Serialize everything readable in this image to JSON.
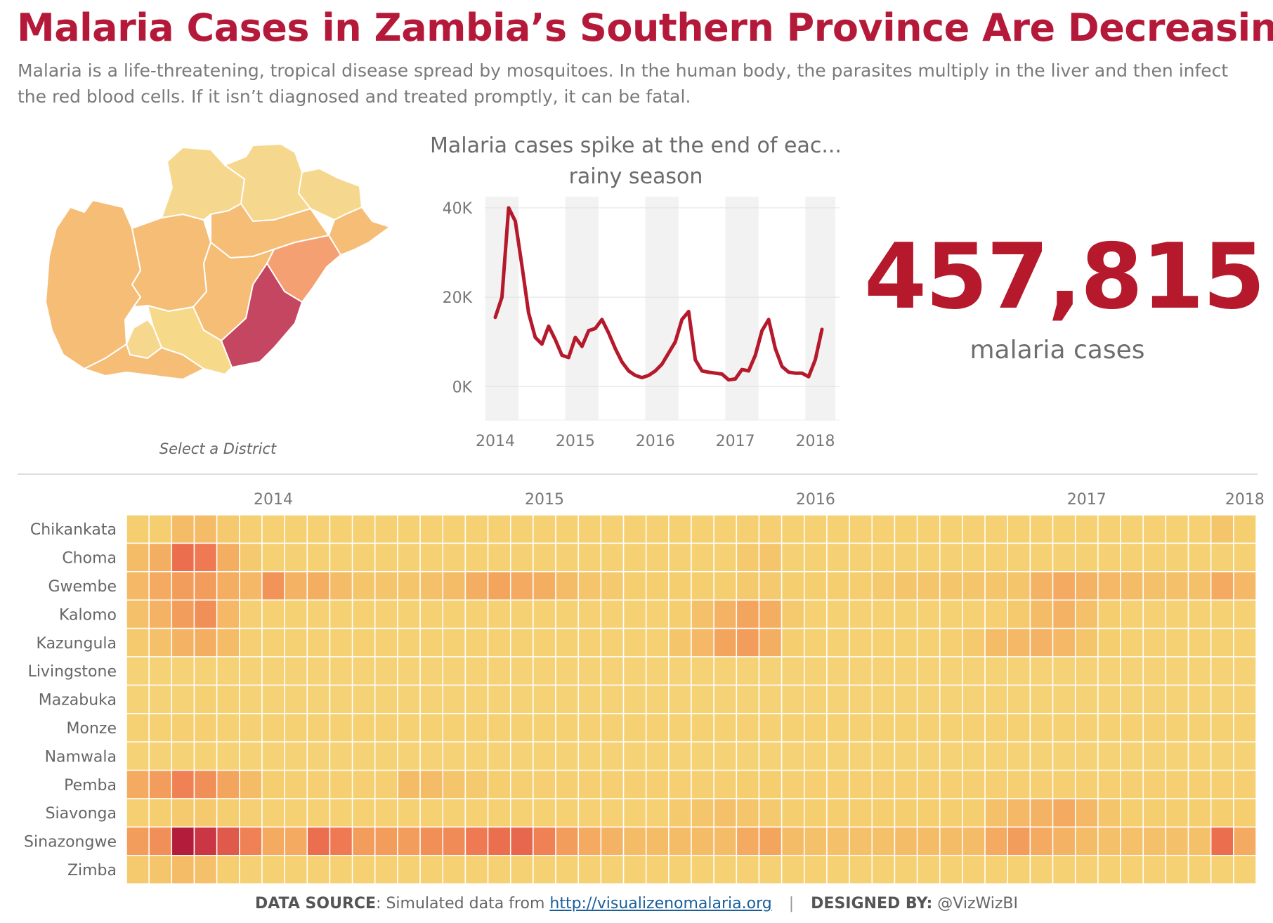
{
  "header": {
    "title": "Malaria Cases in Zambia’s Southern Province Are Decreasing",
    "subtitle": "Malaria is a life-threatening, tropical disease spread by mosquitoes. In the human body, the parasites multiply in the liver and then infect the red blood cells. If it isn’t diagnosed and treated promptly, it can be fatal."
  },
  "map": {
    "caption": "Select a District",
    "colors": [
      "#f6d78e",
      "#f5bd75",
      "#f4a072",
      "#c44660",
      "#f7d98a"
    ]
  },
  "kpi": {
    "value": "457,815",
    "label": "malaria cases"
  },
  "footer": {
    "source_label": "DATA SOURCE",
    "source_text": ": Simulated data from ",
    "source_link": "http://visualizenomalaria.org",
    "separator": "|",
    "designed_label": "DESIGNED BY:",
    "designed_text": " @VizWizBI"
  },
  "chart_data": [
    {
      "type": "line",
      "title": "Malaria cases spike at the end of eac... rainy season",
      "y_ticks": [
        "40K",
        "20K",
        "0K"
      ],
      "y_tick_values": [
        40000,
        20000,
        0
      ],
      "x_ticks": [
        "2014",
        "2015",
        "2016",
        "2017",
        "2018"
      ],
      "ylim": [
        -7500,
        42500
      ],
      "grid": true,
      "color": "#b5192b",
      "series": [
        {
          "name": "",
          "x": [
            "2014-01",
            "2014-02",
            "2014-03",
            "2014-04",
            "2014-05",
            "2014-06",
            "2014-07",
            "2014-08",
            "2014-09",
            "2014-10",
            "2014-11",
            "2014-12",
            "2015-01",
            "2015-02",
            "2015-03",
            "2015-04",
            "2015-05",
            "2015-06",
            "2015-07",
            "2015-08",
            "2015-09",
            "2015-10",
            "2015-11",
            "2015-12",
            "2016-01",
            "2016-02",
            "2016-03",
            "2016-04",
            "2016-05",
            "2016-06",
            "2016-07",
            "2016-08",
            "2016-09",
            "2016-10",
            "2016-11",
            "2016-12",
            "2017-01",
            "2017-02",
            "2017-03",
            "2017-04",
            "2017-05",
            "2017-06",
            "2017-07",
            "2017-08",
            "2017-09",
            "2017-10",
            "2017-11",
            "2017-12",
            "2018-01",
            "2018-02"
          ],
          "values": [
            15500,
            20000,
            40000,
            37000,
            27000,
            16500,
            11000,
            9500,
            13500,
            10500,
            7000,
            6500,
            11000,
            9000,
            12500,
            13000,
            15000,
            12000,
            8500,
            5500,
            3500,
            2500,
            2000,
            2500,
            3500,
            5000,
            7500,
            10000,
            15000,
            16800,
            6000,
            3500,
            3200,
            3000,
            2800,
            1500,
            1700,
            3800,
            3500,
            7000,
            12500,
            15000,
            8500,
            4500,
            3200,
            3000,
            3000,
            2200,
            6000,
            12800
          ]
        }
      ]
    },
    {
      "type": "heatmap",
      "rows": [
        "Chikankata",
        "Choma",
        "Gwembe",
        "Kalomo",
        "Kazungula",
        "Livingstone",
        "Mazabuka",
        "Monze",
        "Namwala",
        "Pemba",
        "Siavonga",
        "Sinazongwe",
        "Zimba"
      ],
      "year_labels": [
        "2014",
        "2015",
        "2016",
        "2017",
        "2018"
      ],
      "columns": 50,
      "scale": "0 = lowest cases (light yellow), 1 = highest (dark red)",
      "values": [
        [
          0.2,
          0.2,
          0.3,
          0.3,
          0.22,
          0.18,
          0.15,
          0.15,
          0.15,
          0.15,
          0.15,
          0.15,
          0.15,
          0.15,
          0.15,
          0.15,
          0.15,
          0.15,
          0.15,
          0.15,
          0.15,
          0.15,
          0.15,
          0.15,
          0.15,
          0.15,
          0.15,
          0.18,
          0.18,
          0.15,
          0.15,
          0.15,
          0.15,
          0.15,
          0.15,
          0.15,
          0.15,
          0.15,
          0.15,
          0.15,
          0.15,
          0.15,
          0.15,
          0.15,
          0.15,
          0.15,
          0.15,
          0.15,
          0.25,
          0.2
        ],
        [
          0.3,
          0.38,
          0.62,
          0.58,
          0.38,
          0.22,
          0.15,
          0.15,
          0.15,
          0.15,
          0.15,
          0.15,
          0.15,
          0.15,
          0.15,
          0.15,
          0.15,
          0.15,
          0.15,
          0.15,
          0.15,
          0.15,
          0.15,
          0.15,
          0.15,
          0.15,
          0.15,
          0.22,
          0.25,
          0.15,
          0.15,
          0.15,
          0.15,
          0.15,
          0.15,
          0.15,
          0.15,
          0.15,
          0.15,
          0.15,
          0.15,
          0.15,
          0.15,
          0.15,
          0.15,
          0.15,
          0.15,
          0.15,
          0.15,
          0.15
        ],
        [
          0.32,
          0.4,
          0.45,
          0.45,
          0.38,
          0.32,
          0.48,
          0.35,
          0.38,
          0.3,
          0.25,
          0.25,
          0.25,
          0.28,
          0.3,
          0.38,
          0.42,
          0.4,
          0.38,
          0.3,
          0.25,
          0.22,
          0.2,
          0.2,
          0.2,
          0.2,
          0.2,
          0.22,
          0.22,
          0.2,
          0.2,
          0.2,
          0.2,
          0.22,
          0.25,
          0.25,
          0.25,
          0.25,
          0.25,
          0.25,
          0.35,
          0.4,
          0.35,
          0.32,
          0.3,
          0.28,
          0.28,
          0.28,
          0.4,
          0.32
        ],
        [
          0.28,
          0.35,
          0.45,
          0.5,
          0.32,
          0.18,
          0.15,
          0.15,
          0.15,
          0.15,
          0.15,
          0.15,
          0.15,
          0.15,
          0.15,
          0.15,
          0.15,
          0.15,
          0.15,
          0.15,
          0.15,
          0.15,
          0.15,
          0.15,
          0.2,
          0.28,
          0.35,
          0.42,
          0.38,
          0.22,
          0.15,
          0.15,
          0.15,
          0.15,
          0.15,
          0.15,
          0.15,
          0.15,
          0.18,
          0.22,
          0.3,
          0.35,
          0.28,
          0.2,
          0.15,
          0.15,
          0.15,
          0.15,
          0.15,
          0.15
        ],
        [
          0.22,
          0.28,
          0.35,
          0.38,
          0.3,
          0.18,
          0.15,
          0.15,
          0.15,
          0.15,
          0.15,
          0.15,
          0.15,
          0.15,
          0.15,
          0.15,
          0.15,
          0.15,
          0.15,
          0.15,
          0.15,
          0.15,
          0.15,
          0.15,
          0.25,
          0.32,
          0.42,
          0.45,
          0.38,
          0.2,
          0.15,
          0.15,
          0.15,
          0.15,
          0.15,
          0.15,
          0.18,
          0.22,
          0.3,
          0.32,
          0.35,
          0.32,
          0.25,
          0.2,
          0.15,
          0.15,
          0.15,
          0.15,
          0.15,
          0.15
        ],
        [
          0.12,
          0.12,
          0.12,
          0.12,
          0.12,
          0.12,
          0.12,
          0.12,
          0.12,
          0.12,
          0.12,
          0.12,
          0.12,
          0.12,
          0.12,
          0.12,
          0.12,
          0.12,
          0.12,
          0.12,
          0.12,
          0.12,
          0.12,
          0.12,
          0.12,
          0.12,
          0.12,
          0.12,
          0.12,
          0.12,
          0.12,
          0.12,
          0.12,
          0.12,
          0.12,
          0.12,
          0.12,
          0.12,
          0.12,
          0.12,
          0.12,
          0.12,
          0.12,
          0.12,
          0.12,
          0.12,
          0.12,
          0.12,
          0.12,
          0.12
        ],
        [
          0.12,
          0.12,
          0.12,
          0.14,
          0.14,
          0.12,
          0.12,
          0.12,
          0.12,
          0.12,
          0.12,
          0.12,
          0.12,
          0.12,
          0.12,
          0.12,
          0.12,
          0.12,
          0.12,
          0.12,
          0.12,
          0.12,
          0.12,
          0.12,
          0.12,
          0.12,
          0.12,
          0.12,
          0.12,
          0.12,
          0.12,
          0.12,
          0.12,
          0.12,
          0.12,
          0.12,
          0.12,
          0.12,
          0.12,
          0.12,
          0.12,
          0.12,
          0.12,
          0.12,
          0.12,
          0.12,
          0.12,
          0.12,
          0.12,
          0.12
        ],
        [
          0.15,
          0.15,
          0.18,
          0.18,
          0.15,
          0.15,
          0.15,
          0.15,
          0.15,
          0.15,
          0.15,
          0.15,
          0.15,
          0.15,
          0.15,
          0.15,
          0.15,
          0.15,
          0.15,
          0.15,
          0.15,
          0.15,
          0.15,
          0.15,
          0.15,
          0.15,
          0.15,
          0.15,
          0.15,
          0.15,
          0.15,
          0.15,
          0.15,
          0.15,
          0.15,
          0.15,
          0.15,
          0.15,
          0.15,
          0.15,
          0.15,
          0.15,
          0.15,
          0.15,
          0.15,
          0.15,
          0.15,
          0.15,
          0.15,
          0.15
        ],
        [
          0.13,
          0.13,
          0.13,
          0.13,
          0.13,
          0.13,
          0.13,
          0.13,
          0.13,
          0.13,
          0.13,
          0.13,
          0.13,
          0.13,
          0.13,
          0.13,
          0.13,
          0.13,
          0.13,
          0.13,
          0.13,
          0.13,
          0.13,
          0.13,
          0.13,
          0.13,
          0.13,
          0.13,
          0.13,
          0.13,
          0.13,
          0.13,
          0.13,
          0.13,
          0.13,
          0.13,
          0.13,
          0.13,
          0.13,
          0.13,
          0.13,
          0.13,
          0.13,
          0.13,
          0.13,
          0.13,
          0.13,
          0.13,
          0.13,
          0.13
        ],
        [
          0.4,
          0.45,
          0.55,
          0.5,
          0.42,
          0.3,
          0.2,
          0.18,
          0.18,
          0.18,
          0.18,
          0.18,
          0.3,
          0.3,
          0.25,
          0.22,
          0.2,
          0.18,
          0.18,
          0.18,
          0.18,
          0.18,
          0.18,
          0.18,
          0.18,
          0.18,
          0.18,
          0.2,
          0.2,
          0.18,
          0.18,
          0.18,
          0.18,
          0.18,
          0.18,
          0.18,
          0.18,
          0.18,
          0.18,
          0.18,
          0.18,
          0.18,
          0.18,
          0.18,
          0.18,
          0.18,
          0.18,
          0.18,
          0.18,
          0.18
        ],
        [
          0.18,
          0.2,
          0.22,
          0.22,
          0.2,
          0.18,
          0.15,
          0.15,
          0.15,
          0.15,
          0.15,
          0.15,
          0.15,
          0.15,
          0.15,
          0.15,
          0.15,
          0.15,
          0.15,
          0.15,
          0.15,
          0.15,
          0.15,
          0.15,
          0.22,
          0.25,
          0.28,
          0.25,
          0.22,
          0.2,
          0.2,
          0.2,
          0.2,
          0.2,
          0.2,
          0.2,
          0.2,
          0.2,
          0.28,
          0.32,
          0.35,
          0.4,
          0.32,
          0.25,
          0.2,
          0.2,
          0.2,
          0.2,
          0.2,
          0.2
        ],
        [
          0.45,
          0.5,
          0.98,
          0.85,
          0.7,
          0.55,
          0.4,
          0.4,
          0.62,
          0.58,
          0.45,
          0.45,
          0.45,
          0.5,
          0.52,
          0.58,
          0.62,
          0.65,
          0.55,
          0.45,
          0.4,
          0.35,
          0.3,
          0.3,
          0.3,
          0.3,
          0.3,
          0.4,
          0.42,
          0.3,
          0.28,
          0.28,
          0.28,
          0.28,
          0.3,
          0.3,
          0.3,
          0.3,
          0.4,
          0.45,
          0.4,
          0.35,
          0.3,
          0.28,
          0.28,
          0.28,
          0.28,
          0.28,
          0.62,
          0.4
        ],
        [
          0.22,
          0.25,
          0.3,
          0.28,
          0.2,
          0.15,
          0.15,
          0.15,
          0.15,
          0.15,
          0.15,
          0.15,
          0.15,
          0.15,
          0.15,
          0.15,
          0.15,
          0.15,
          0.15,
          0.15,
          0.15,
          0.15,
          0.15,
          0.15,
          0.15,
          0.15,
          0.15,
          0.15,
          0.15,
          0.15,
          0.15,
          0.15,
          0.15,
          0.15,
          0.15,
          0.15,
          0.15,
          0.15,
          0.15,
          0.15,
          0.15,
          0.15,
          0.15,
          0.15,
          0.15,
          0.15,
          0.15,
          0.15,
          0.15,
          0.15
        ]
      ]
    }
  ]
}
